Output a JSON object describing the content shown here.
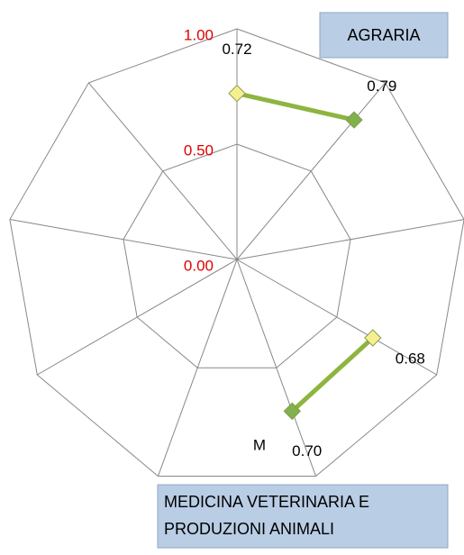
{
  "chart_data": {
    "type": "radar",
    "categories": [
      null,
      null,
      null,
      null,
      null,
      null,
      null,
      null,
      null
    ],
    "series": [
      {
        "name": "AGRARIA",
        "color": "#8db53f",
        "values": [
          0.72,
          0.79,
          null,
          null,
          null,
          null,
          null,
          null,
          null
        ],
        "value_labels": [
          "0.72",
          "0.79",
          null,
          null,
          null,
          null,
          null,
          null,
          null
        ]
      },
      {
        "name": "MEDICINA VETERINARIA E PRODUZIONI ANIMALI",
        "color": "#8db53f",
        "values": [
          null,
          null,
          null,
          0.68,
          0.7,
          null,
          null,
          null,
          null
        ],
        "value_labels": [
          null,
          null,
          null,
          "0.68",
          "0.70",
          null,
          null,
          null,
          null
        ]
      }
    ],
    "marker_colors": [
      "#f4f090",
      "#7fb24a"
    ],
    "ylim": [
      0,
      1
    ],
    "yticks": [
      {
        "value": 0,
        "label": "0.00"
      },
      {
        "value": 0.5,
        "label": "0.50"
      },
      {
        "value": 1,
        "label": "1.00"
      }
    ],
    "tick_color": "#e00000",
    "annotations": [
      "M"
    ]
  }
}
